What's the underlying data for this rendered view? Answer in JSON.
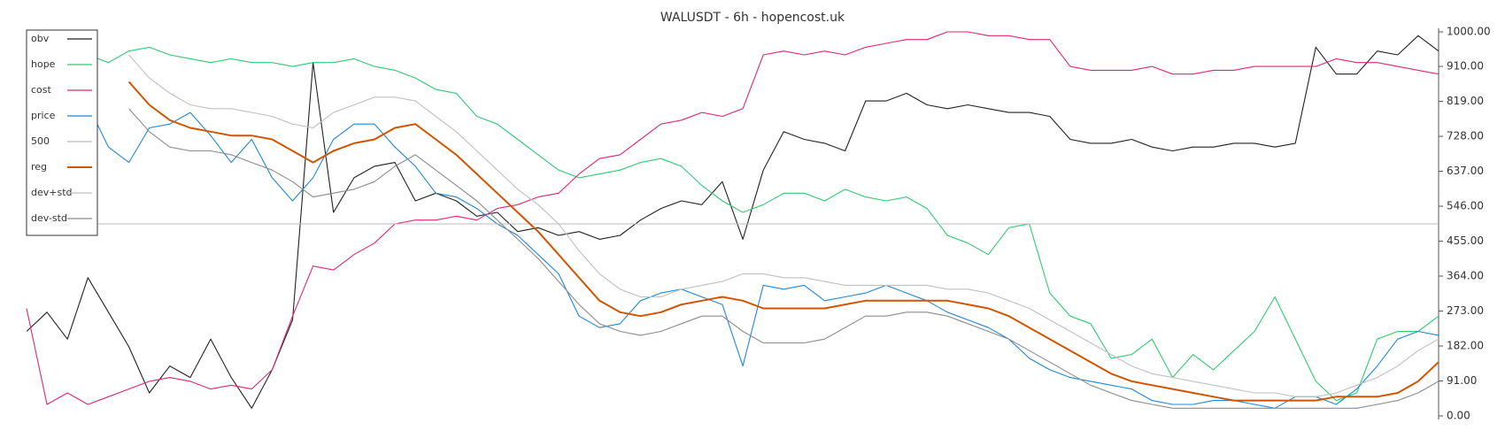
{
  "chart_data": {
    "type": "line",
    "title": "WALUSDT - 6h - hopencost.uk",
    "ylim": [
      0,
      1000
    ],
    "yticks": [
      {
        "value": 0,
        "label": "0.00"
      },
      {
        "value": 91,
        "label": "91.00"
      },
      {
        "value": 182,
        "label": "182.00"
      },
      {
        "value": 273,
        "label": "273.00"
      },
      {
        "value": 364,
        "label": "364.00"
      },
      {
        "value": 455,
        "label": "455.00"
      },
      {
        "value": 546,
        "label": "546.00"
      },
      {
        "value": 637,
        "label": "637.00"
      },
      {
        "value": 728,
        "label": "728.00"
      },
      {
        "value": 819,
        "label": "819.00"
      },
      {
        "value": 910,
        "label": "910.00"
      },
      {
        "value": 1000,
        "label": "1000.00"
      }
    ],
    "grid": false,
    "legend": "upper left",
    "y_axis_side": "right",
    "series": [
      {
        "name": "obv",
        "color": "#222222",
        "values": [
          220,
          270,
          200,
          360,
          270,
          180,
          60,
          130,
          100,
          200,
          100,
          20,
          120,
          250,
          920,
          530,
          620,
          650,
          660,
          560,
          580,
          560,
          520,
          530,
          480,
          490,
          470,
          480,
          460,
          470,
          510,
          540,
          560,
          550,
          610,
          460,
          640,
          740,
          720,
          710,
          690,
          820,
          820,
          840,
          810,
          800,
          810,
          800,
          790,
          790,
          780,
          720,
          710,
          710,
          720,
          700,
          690,
          700,
          700,
          710,
          710,
          700,
          710,
          960,
          890,
          890,
          950,
          940,
          990,
          950
        ]
      },
      {
        "name": "hope",
        "color": "#2ecc71",
        "values": [
          null,
          null,
          null,
          940,
          920,
          950,
          960,
          940,
          930,
          920,
          930,
          920,
          920,
          910,
          920,
          920,
          930,
          910,
          900,
          880,
          850,
          840,
          780,
          760,
          720,
          680,
          640,
          620,
          630,
          640,
          660,
          670,
          650,
          600,
          560,
          530,
          550,
          580,
          580,
          560,
          590,
          570,
          560,
          570,
          540,
          470,
          450,
          420,
          490,
          500,
          320,
          260,
          240,
          150,
          160,
          200,
          100,
          160,
          120,
          170,
          220,
          310,
          200,
          90,
          40,
          60,
          200,
          220,
          220,
          260
        ]
      },
      {
        "name": "cost",
        "color": "#e0267a",
        "values": [
          280,
          30,
          60,
          30,
          50,
          70,
          90,
          100,
          90,
          70,
          80,
          70,
          120,
          260,
          390,
          380,
          420,
          450,
          500,
          510,
          510,
          520,
          510,
          540,
          550,
          570,
          580,
          630,
          670,
          680,
          720,
          760,
          770,
          790,
          780,
          800,
          940,
          950,
          940,
          950,
          940,
          960,
          970,
          980,
          980,
          1000,
          1000,
          990,
          990,
          980,
          980,
          910,
          900,
          900,
          900,
          910,
          890,
          890,
          900,
          900,
          910,
          910,
          910,
          910,
          930,
          920,
          920,
          910,
          900,
          890
        ]
      },
      {
        "name": "price",
        "color": "#1f88d8",
        "values": [
          null,
          null,
          null,
          810,
          700,
          660,
          750,
          760,
          790,
          730,
          660,
          720,
          620,
          560,
          620,
          720,
          760,
          760,
          700,
          650,
          580,
          570,
          540,
          500,
          470,
          420,
          370,
          260,
          230,
          240,
          300,
          320,
          330,
          310,
          290,
          130,
          340,
          330,
          340,
          300,
          310,
          320,
          340,
          320,
          300,
          270,
          250,
          230,
          200,
          150,
          120,
          100,
          90,
          80,
          70,
          40,
          30,
          30,
          40,
          40,
          30,
          20,
          50,
          50,
          30,
          70,
          130,
          200,
          220,
          210
        ]
      },
      {
        "name": "500",
        "color": "#bbbbbb",
        "values": [
          500,
          500,
          500,
          500,
          500,
          500,
          500,
          500,
          500,
          500,
          500,
          500,
          500,
          500,
          500,
          500,
          500,
          500,
          500,
          500,
          500,
          500,
          500,
          500,
          500,
          500,
          500,
          500,
          500,
          500,
          500,
          500,
          500,
          500,
          500,
          500,
          500,
          500,
          500,
          500,
          500,
          500,
          500,
          500,
          500,
          500,
          500,
          500,
          500,
          500,
          500,
          500,
          500,
          500,
          500,
          500,
          500,
          500,
          500,
          500,
          500,
          500,
          500,
          500,
          500,
          500,
          500,
          500,
          500,
          500
        ]
      },
      {
        "name": "reg",
        "color": "#d35400",
        "values": [
          null,
          null,
          null,
          null,
          null,
          870,
          810,
          770,
          750,
          740,
          730,
          730,
          720,
          690,
          660,
          690,
          710,
          720,
          750,
          760,
          720,
          680,
          630,
          580,
          530,
          480,
          420,
          360,
          300,
          270,
          260,
          270,
          290,
          300,
          310,
          300,
          280,
          280,
          280,
          280,
          290,
          300,
          300,
          300,
          300,
          300,
          290,
          280,
          260,
          230,
          200,
          170,
          140,
          110,
          90,
          80,
          70,
          60,
          50,
          40,
          40,
          40,
          40,
          40,
          50,
          50,
          50,
          60,
          90,
          140
        ]
      },
      {
        "name": "dev+std",
        "color": "#c0c0c0",
        "values": [
          null,
          null,
          null,
          null,
          null,
          940,
          880,
          840,
          810,
          800,
          800,
          790,
          780,
          760,
          750,
          790,
          810,
          830,
          830,
          820,
          780,
          740,
          690,
          640,
          590,
          550,
          500,
          430,
          370,
          330,
          310,
          310,
          330,
          340,
          350,
          370,
          370,
          360,
          360,
          350,
          340,
          340,
          340,
          340,
          340,
          330,
          330,
          320,
          300,
          280,
          250,
          220,
          190,
          160,
          130,
          110,
          100,
          90,
          80,
          70,
          60,
          60,
          50,
          50,
          60,
          80,
          100,
          130,
          170,
          200
        ]
      },
      {
        "name": "dev-std",
        "color": "#8c8c8c",
        "values": [
          null,
          null,
          null,
          null,
          null,
          800,
          740,
          700,
          690,
          690,
          680,
          660,
          640,
          610,
          570,
          580,
          590,
          610,
          650,
          680,
          640,
          600,
          560,
          510,
          460,
          410,
          350,
          290,
          240,
          220,
          210,
          220,
          240,
          260,
          260,
          220,
          190,
          190,
          190,
          200,
          230,
          260,
          260,
          270,
          270,
          260,
          240,
          220,
          200,
          170,
          140,
          110,
          80,
          60,
          40,
          30,
          20,
          20,
          20,
          20,
          20,
          20,
          20,
          20,
          20,
          20,
          30,
          40,
          60,
          90
        ]
      }
    ]
  }
}
